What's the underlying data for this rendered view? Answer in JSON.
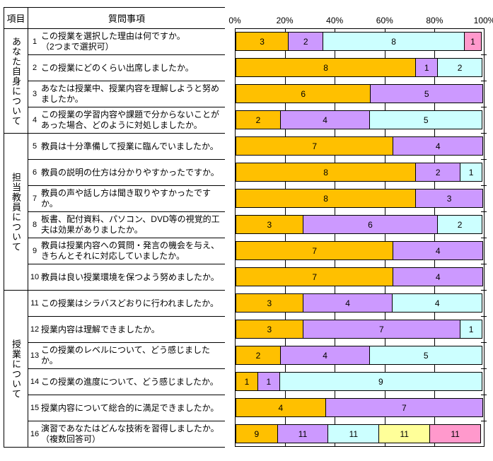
{
  "table": {
    "header": {
      "item": "項目",
      "question": "質問事項"
    },
    "sections": [
      {
        "label": "あなた自身について",
        "row_count": 4
      },
      {
        "label": "担当教員について",
        "row_count": 6
      },
      {
        "label": "授業について",
        "row_count": 6
      }
    ],
    "rows": [
      {
        "no": "1",
        "text": "この授業を選択した理由は何ですか。\n（2つまで選択可）"
      },
      {
        "no": "2",
        "text": "この授業にどのくらい出席しましたか。"
      },
      {
        "no": "3",
        "text": "あなたは授業中、授業内容を理解しようと努めましたか。"
      },
      {
        "no": "4",
        "text": "この授業の学習内容や課題で分からないことがあった場合、どのように対処しましたか。"
      },
      {
        "no": "5",
        "text": "教員は十分準備して授業に臨んでいましたか。"
      },
      {
        "no": "6",
        "text": "教員の説明の仕方は分かりやすかったですか。"
      },
      {
        "no": "7",
        "text": "教員の声や話し方は聞き取りやすかったですか。"
      },
      {
        "no": "8",
        "text": "板書、配付資料、パソコン、DVD等の視覚的工夫は効果がありましたか。"
      },
      {
        "no": "9",
        "text": "教員は授業内容への質問・発言の機会を与え、きちんとそれに対応していましたか。"
      },
      {
        "no": "10",
        "text": "教員は良い授業環境を保つよう努めましたか。"
      },
      {
        "no": "11",
        "text": "この授業はシラバスどおりに行われましたか。"
      },
      {
        "no": "12",
        "text": "授業内容は理解できましたか。"
      },
      {
        "no": "13",
        "text": "この授業のレベルについて、どう感じましたか。"
      },
      {
        "no": "14",
        "text": "この授業の進度について、どう感じましたか。"
      },
      {
        "no": "15",
        "text": "授業内容について総合的に満足できましたか。"
      },
      {
        "no": "16",
        "text": "演習であなたはどんな技術を習得しましたか。\n（複数回答可）"
      }
    ]
  },
  "chart_data": {
    "type": "bar",
    "stacked": true,
    "orientation": "horizontal",
    "grid": true,
    "legend": "none",
    "x_axis": {
      "position": "top",
      "min": 0,
      "max": 100,
      "ticks": [
        "0%",
        "20%",
        "40%",
        "60%",
        "80%",
        "100%"
      ],
      "tick_percents": [
        0,
        20,
        40,
        60,
        80,
        100
      ]
    },
    "palette": {
      "gold": "#FFC000",
      "purple": "#CC99FF",
      "cyan": "#CCFFFF",
      "yellow": "#FFFF99",
      "pink": "#FF99CC"
    },
    "rows": [
      {
        "question": 1,
        "segments": [
          {
            "value": 3,
            "color": "gold"
          },
          {
            "value": 2,
            "color": "purple"
          },
          {
            "value": 8,
            "color": "cyan"
          },
          {
            "value": 1,
            "color": "pink"
          }
        ]
      },
      {
        "question": 2,
        "segments": [
          {
            "value": 8,
            "color": "gold"
          },
          {
            "value": 1,
            "color": "purple"
          },
          {
            "value": 2,
            "color": "cyan"
          }
        ]
      },
      {
        "question": 3,
        "segments": [
          {
            "value": 6,
            "color": "gold"
          },
          {
            "value": 5,
            "color": "purple"
          }
        ]
      },
      {
        "question": 4,
        "segments": [
          {
            "value": 2,
            "color": "gold"
          },
          {
            "value": 4,
            "color": "purple"
          },
          {
            "value": 5,
            "color": "cyan"
          }
        ]
      },
      {
        "question": 5,
        "segments": [
          {
            "value": 7,
            "color": "gold"
          },
          {
            "value": 4,
            "color": "purple"
          }
        ]
      },
      {
        "question": 6,
        "segments": [
          {
            "value": 8,
            "color": "gold"
          },
          {
            "value": 2,
            "color": "purple"
          },
          {
            "value": 1,
            "color": "cyan"
          }
        ]
      },
      {
        "question": 7,
        "segments": [
          {
            "value": 8,
            "color": "gold"
          },
          {
            "value": 3,
            "color": "purple"
          }
        ]
      },
      {
        "question": 8,
        "segments": [
          {
            "value": 3,
            "color": "gold"
          },
          {
            "value": 6,
            "color": "purple"
          },
          {
            "value": 2,
            "color": "cyan"
          }
        ]
      },
      {
        "question": 9,
        "segments": [
          {
            "value": 7,
            "color": "gold"
          },
          {
            "value": 4,
            "color": "purple"
          }
        ]
      },
      {
        "question": 10,
        "segments": [
          {
            "value": 7,
            "color": "gold"
          },
          {
            "value": 4,
            "color": "purple"
          }
        ]
      },
      {
        "question": 11,
        "segments": [
          {
            "value": 3,
            "color": "gold"
          },
          {
            "value": 4,
            "color": "purple"
          },
          {
            "value": 4,
            "color": "cyan"
          }
        ]
      },
      {
        "question": 12,
        "segments": [
          {
            "value": 3,
            "color": "gold"
          },
          {
            "value": 7,
            "color": "purple"
          },
          {
            "value": 1,
            "color": "cyan"
          }
        ]
      },
      {
        "question": 13,
        "segments": [
          {
            "value": 2,
            "color": "gold"
          },
          {
            "value": 4,
            "color": "purple"
          },
          {
            "value": 5,
            "color": "cyan"
          }
        ]
      },
      {
        "question": 14,
        "segments": [
          {
            "value": 1,
            "color": "gold"
          },
          {
            "value": 1,
            "color": "purple"
          },
          {
            "value": 9,
            "color": "cyan"
          }
        ]
      },
      {
        "question": 15,
        "segments": [
          {
            "value": 4,
            "color": "gold"
          },
          {
            "value": 7,
            "color": "purple"
          }
        ]
      },
      {
        "question": 16,
        "segments": [
          {
            "value": 9,
            "color": "gold"
          },
          {
            "value": 11,
            "color": "purple"
          },
          {
            "value": 11,
            "color": "cyan"
          },
          {
            "value": 11,
            "color": "yellow"
          },
          {
            "value": 11,
            "color": "pink"
          }
        ]
      }
    ]
  }
}
